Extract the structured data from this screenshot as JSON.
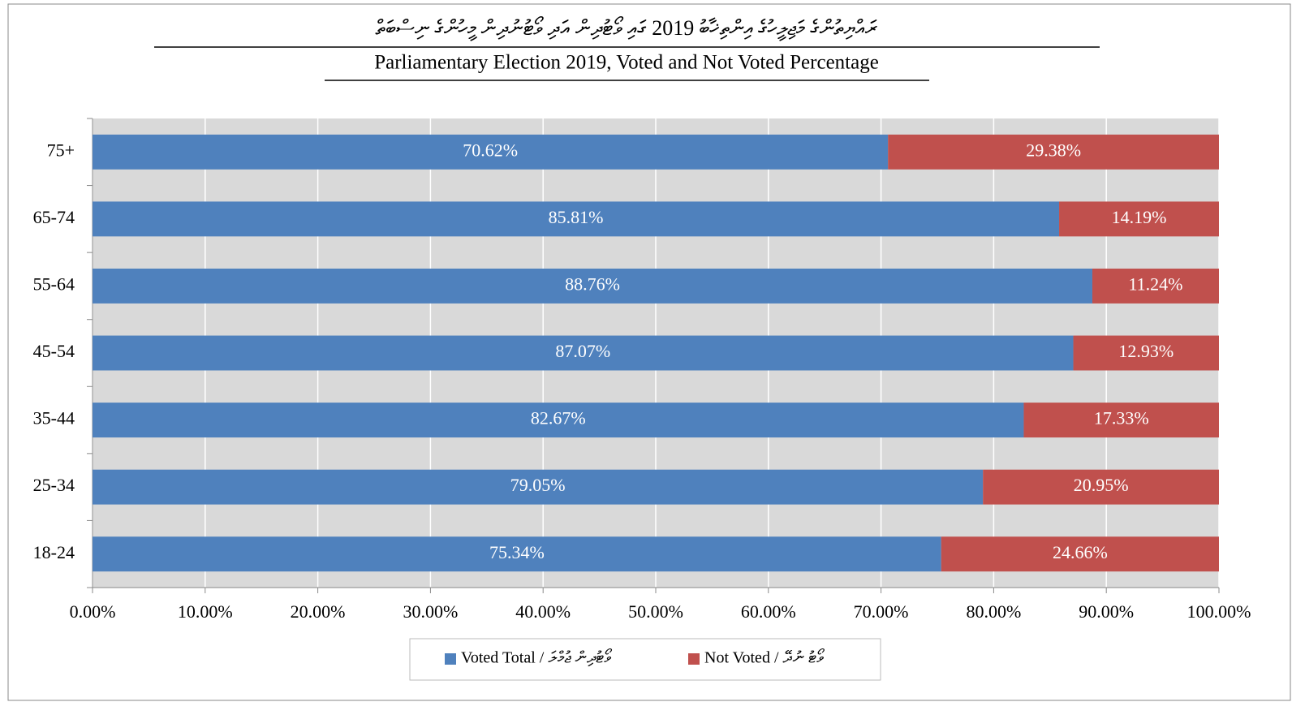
{
  "chart_data": {
    "type": "stacked-bar-horizontal",
    "title_dv": "ރައްޔިތުންގެ މަޖިލީހުގެ އިންތިޚާބު 2019 ގައި ވޯޓުދިން އަދި ވޯޓުނުދިން މީހުންގެ ނިސްބަތް",
    "title": "Parliamentary Election 2019, Voted and Not Voted Percentage",
    "categories": [
      "75+",
      "65-74",
      "55-64",
      "45-54",
      "35-44",
      "25-34",
      "18-24"
    ],
    "series": [
      {
        "name": "Voted Total / ވޯޓުދިން ޖުމްލަ",
        "color": "#4f81bd",
        "values": [
          70.62,
          85.81,
          88.76,
          87.07,
          82.67,
          79.05,
          75.34
        ],
        "value_labels": [
          "70.62%",
          "85.81%",
          "88.76%",
          "87.07%",
          "82.67%",
          "79.05%",
          "75.34%"
        ]
      },
      {
        "name": "Not Voted / ވޯޓު ނުދޭ",
        "color": "#c0504d",
        "values": [
          29.38,
          14.19,
          11.24,
          12.93,
          17.33,
          20.95,
          24.66
        ],
        "value_labels": [
          "29.38%",
          "14.19%",
          "11.24%",
          "12.93%",
          "17.33%",
          "20.95%",
          "24.66%"
        ]
      }
    ],
    "xlim": [
      0,
      100
    ],
    "xticks": [
      {
        "value": 0,
        "label": "0.00%"
      },
      {
        "value": 10,
        "label": "10.00%"
      },
      {
        "value": 20,
        "label": "20.00%"
      },
      {
        "value": 30,
        "label": "30.00%"
      },
      {
        "value": 40,
        "label": "40.00%"
      },
      {
        "value": 50,
        "label": "50.00%"
      },
      {
        "value": 60,
        "label": "60.00%"
      },
      {
        "value": 70,
        "label": "70.00%"
      },
      {
        "value": 80,
        "label": "80.00%"
      },
      {
        "value": 90,
        "label": "90.00%"
      },
      {
        "value": 100,
        "label": "100.00%"
      }
    ],
    "grid": true,
    "legend": "bottom"
  }
}
